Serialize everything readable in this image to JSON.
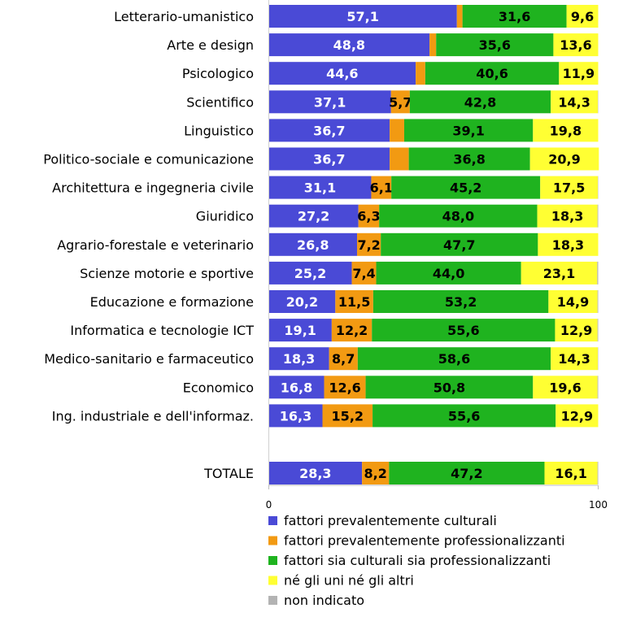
{
  "chart_data": {
    "type": "bar",
    "orientation": "horizontal",
    "stacked": true,
    "xlim": [
      0,
      100
    ],
    "x_ticks": [
      "0",
      "100"
    ],
    "grid": false,
    "legend_position": "bottom",
    "categories": [
      "Letterario-umanistico",
      "Arte e design",
      "Psicologico",
      "Scientifico",
      "Linguistico",
      "Politico-sociale e comunicazione",
      "Architettura e ingegneria civile",
      "Giuridico",
      "Agrario-forestale e veterinario",
      "Scienze motorie e sportive",
      "Educazione e formazione",
      "Informatica e tecnologie ICT",
      "Medico-sanitario e farmaceutico",
      "Economico",
      "Ing. industriale e dell'informaz.",
      "TOTALE"
    ],
    "series": [
      {
        "name": "fattori prevalentemente culturali",
        "color": "#4a4ad6",
        "values": [
          57.1,
          48.8,
          44.6,
          37.1,
          36.7,
          36.7,
          31.1,
          27.2,
          26.8,
          25.2,
          20.2,
          19.1,
          18.3,
          16.8,
          16.3,
          28.3
        ],
        "labels": [
          "57,1",
          "48,8",
          "44,6",
          "37,1",
          "36,7",
          "36,7",
          "31,1",
          "27,2",
          "26,8",
          "25,2",
          "20,2",
          "19,1",
          "18,3",
          "16,8",
          "16,3",
          "28,3"
        ]
      },
      {
        "name": "fattori prevalentemente professionalizzanti",
        "color": "#f29a12",
        "values": [
          1.7,
          2.0,
          2.9,
          5.7,
          4.4,
          5.8,
          6.1,
          6.3,
          7.2,
          7.4,
          11.5,
          12.2,
          8.7,
          12.6,
          15.2,
          8.2
        ],
        "labels": [
          "",
          "",
          "",
          "5,7",
          "",
          "",
          "6,1",
          "6,3",
          "7,2",
          "7,4",
          "11,5",
          "12,2",
          "8,7",
          "12,6",
          "15,2",
          "8,2"
        ]
      },
      {
        "name": "fattori sia culturali sia professionalizzanti",
        "color": "#1fb31f",
        "values": [
          31.6,
          35.6,
          40.6,
          42.8,
          39.1,
          36.8,
          45.2,
          48.0,
          47.7,
          44.0,
          53.2,
          55.6,
          58.6,
          50.8,
          55.6,
          47.2
        ],
        "labels": [
          "31,6",
          "35,6",
          "40,6",
          "42,8",
          "39,1",
          "36,8",
          "45,2",
          "48,0",
          "47,7",
          "44,0",
          "53,2",
          "55,6",
          "58,6",
          "50,8",
          "55,6",
          "47,2"
        ]
      },
      {
        "name": "né gli uni né gli altri",
        "color": "#ffff33",
        "values": [
          9.6,
          13.6,
          11.9,
          14.3,
          19.8,
          20.9,
          17.5,
          18.3,
          18.3,
          23.1,
          14.9,
          12.9,
          14.3,
          19.6,
          12.9,
          16.1
        ],
        "labels": [
          "9,6",
          "13,6",
          "11,9",
          "14,3",
          "19,8",
          "20,9",
          "17,5",
          "18,3",
          "18,3",
          "23,1",
          "14,9",
          "12,9",
          "14,3",
          "19,6",
          "12,9",
          "16,1"
        ]
      },
      {
        "name": "non indicato",
        "color": "#b3b3b3",
        "values": [
          0.0,
          0.0,
          0.0,
          0.1,
          0.0,
          0.0,
          0.1,
          0.2,
          0.0,
          0.3,
          0.2,
          0.2,
          0.1,
          0.2,
          0.0,
          0.2
        ],
        "labels": [
          "",
          "",
          "",
          "",
          "",
          "",
          "",
          "",
          "",
          "",
          "",
          "",
          "",
          "",
          "",
          ""
        ]
      }
    ]
  }
}
